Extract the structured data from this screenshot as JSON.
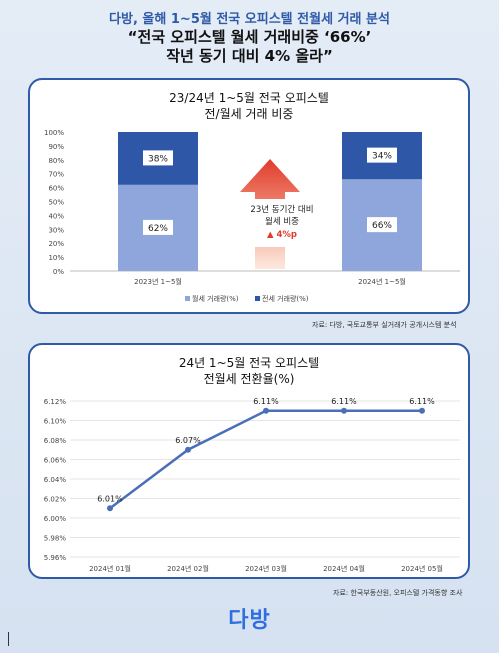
{
  "header": {
    "top_title": "다방, 올해 1~5월 전국 오피스텔 전월세 거래 분석",
    "headline_line1": "“전국 오피스텔 월세 거래비중 ‘66%’",
    "headline_line2": "작년 동기 대비 4% 올라”"
  },
  "chart1": {
    "title_line1": "23/24년 1~5월 전국 오피스텔",
    "title_line2": "전/월세 거래 비중",
    "source": "자료: 다방, 국토교통부 실거래가 공개시스템 분석",
    "annotation_line1": "23년 동기간 대비",
    "annotation_line2": "월세 비중",
    "annotation_line3": "▲ 4%p",
    "colors": {
      "monthly": "#8ea6db",
      "jeonse": "#2f57a8",
      "arrow": "#e03b2c"
    }
  },
  "chart2": {
    "title_line1": "24년 1~5월 전국 오피스텔",
    "title_line2": "전월세 전환율(%)",
    "source": "자료: 한국부동산원, 오피스텔 가격동향 조사",
    "color": "#4a6fb8"
  },
  "logo": {
    "text": "다방"
  },
  "chart_data": [
    {
      "type": "bar",
      "stacked": true,
      "categories": [
        "2023년 1~5월",
        "2024년 1~5월"
      ],
      "series": [
        {
          "name": "월세 거래량(%)",
          "values": [
            62,
            66
          ],
          "labels": [
            "62%",
            "66%"
          ]
        },
        {
          "name": "전세 거래량(%)",
          "values": [
            38,
            34
          ],
          "labels": [
            "38%",
            "34%"
          ]
        }
      ],
      "yticks": [
        "0%",
        "10%",
        "20%",
        "30%",
        "40%",
        "50%",
        "60%",
        "70%",
        "80%",
        "90%",
        "100%"
      ],
      "ylim": [
        0,
        100
      ],
      "legend": "bottom"
    },
    {
      "type": "line",
      "categories": [
        "2024년 01월",
        "2024년 02월",
        "2024년 03월",
        "2024년 04월",
        "2024년 05월"
      ],
      "series": [
        {
          "values": [
            6.01,
            6.07,
            6.11,
            6.11,
            6.11
          ],
          "labels": [
            "6.01%",
            "6.07%",
            "6.11%",
            "6.11%",
            "6.11%"
          ]
        }
      ],
      "yticks": [
        "5.96%",
        "5.98%",
        "6.00%",
        "6.02%",
        "6.04%",
        "6.06%",
        "6.08%",
        "6.10%",
        "6.12%"
      ],
      "ylim": [
        5.96,
        6.12
      ],
      "grid": true
    }
  ]
}
